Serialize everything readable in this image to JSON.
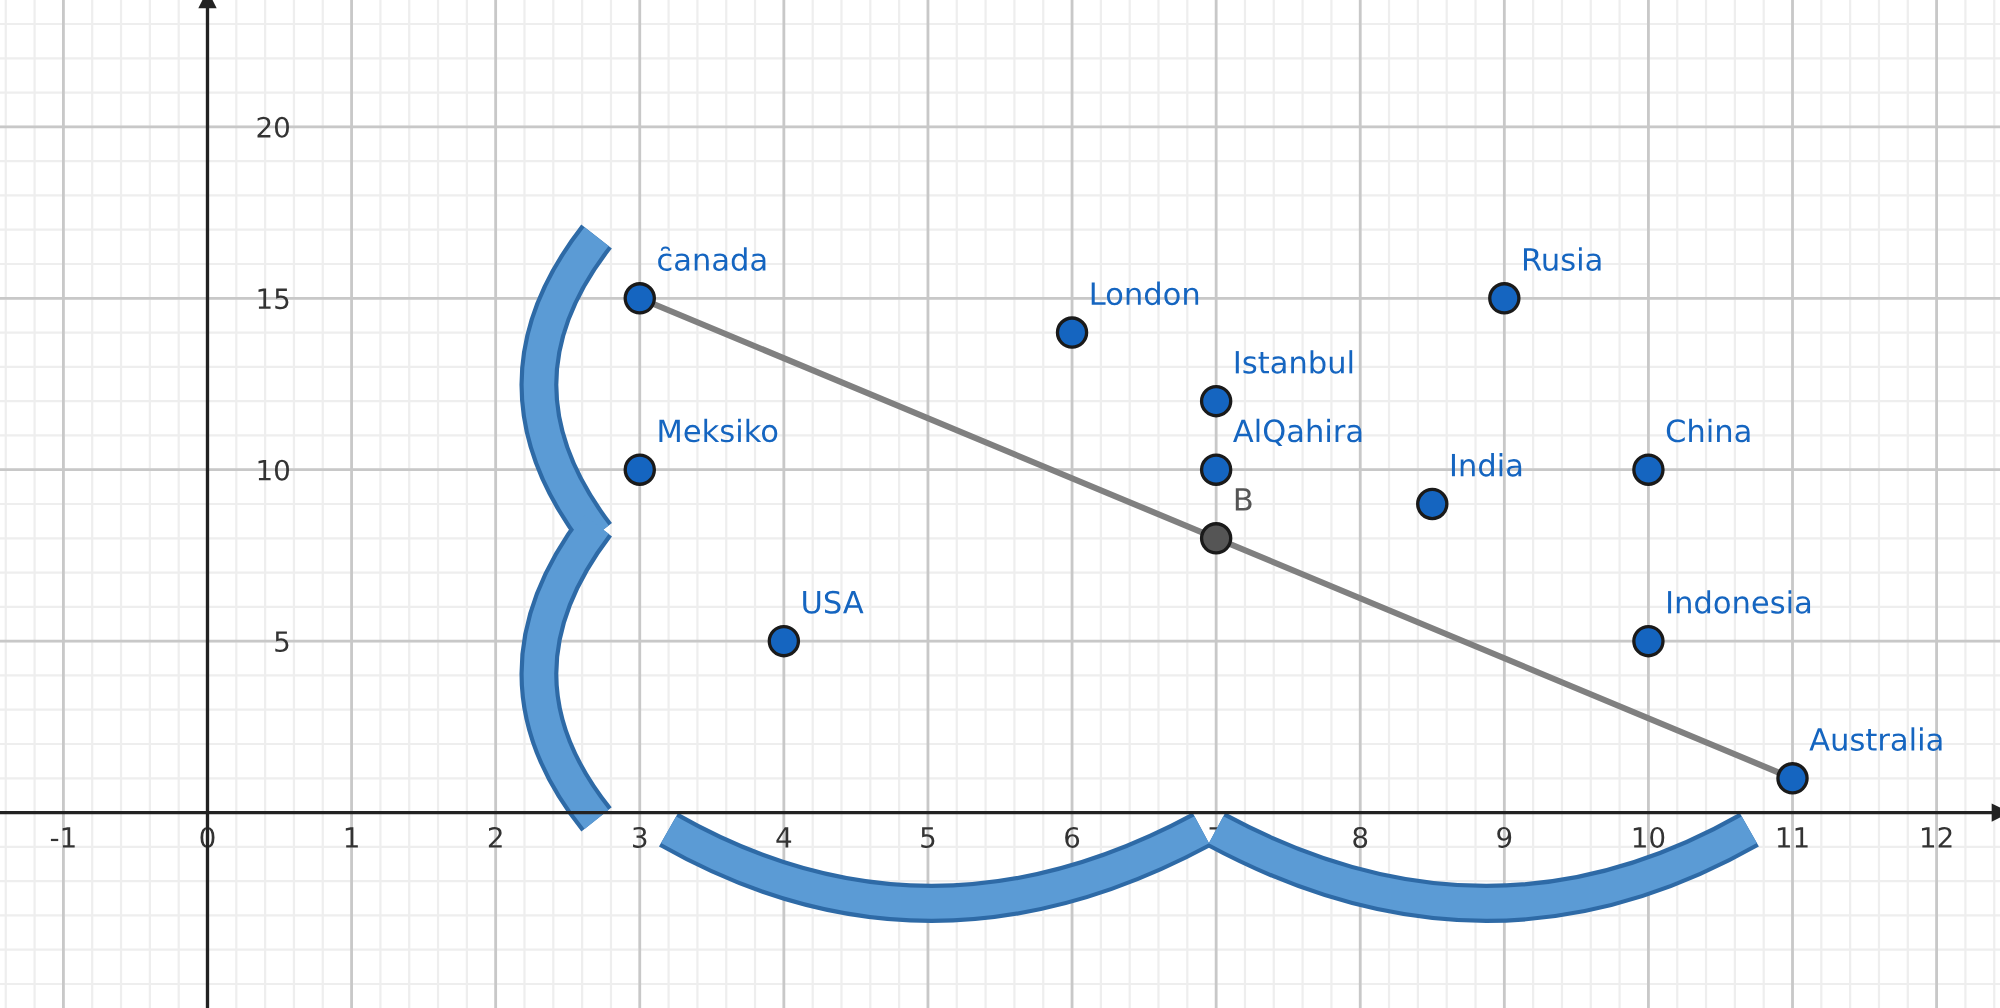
{
  "chart_data": {
    "type": "scatter",
    "xlim": [
      -1.44,
      12.44
    ],
    "ylim": [
      -5.7,
      23.7
    ],
    "xticks": [
      -1,
      0,
      1,
      2,
      3,
      4,
      5,
      6,
      7,
      8,
      9,
      10,
      11,
      12
    ],
    "yticks": [
      5,
      10,
      15,
      20
    ],
    "grid": true,
    "series": [
      {
        "type": "line",
        "color": "#808080",
        "x": [
          3,
          11
        ],
        "values": [
          15,
          1
        ]
      },
      {
        "name": "c̑anada",
        "color": "#1565c0",
        "x": [
          3
        ],
        "values": [
          15
        ]
      },
      {
        "name": "Meksiko",
        "color": "#1565c0",
        "x": [
          3
        ],
        "values": [
          10
        ]
      },
      {
        "name": "USA",
        "color": "#1565c0",
        "x": [
          4
        ],
        "values": [
          5
        ]
      },
      {
        "name": "London",
        "color": "#1565c0",
        "x": [
          6
        ],
        "values": [
          14
        ]
      },
      {
        "name": "Istanbul",
        "color": "#1565c0",
        "x": [
          7
        ],
        "values": [
          12
        ]
      },
      {
        "name": "AlQahira",
        "color": "#1565c0",
        "x": [
          7
        ],
        "values": [
          10
        ]
      },
      {
        "name": "India",
        "color": "#1565c0",
        "x": [
          8.5
        ],
        "values": [
          9
        ]
      },
      {
        "name": "Rusia",
        "color": "#1565c0",
        "x": [
          9
        ],
        "values": [
          15
        ]
      },
      {
        "name": "China",
        "color": "#1565c0",
        "x": [
          10
        ],
        "values": [
          10
        ]
      },
      {
        "name": "Indonesia",
        "color": "#1565c0",
        "x": [
          10
        ],
        "values": [
          5
        ]
      },
      {
        "name": "Australia",
        "color": "#1565c0",
        "x": [
          11
        ],
        "values": [
          1
        ]
      },
      {
        "name": "B",
        "color": "#555555",
        "x": [
          7
        ],
        "values": [
          8
        ]
      }
    ]
  }
}
